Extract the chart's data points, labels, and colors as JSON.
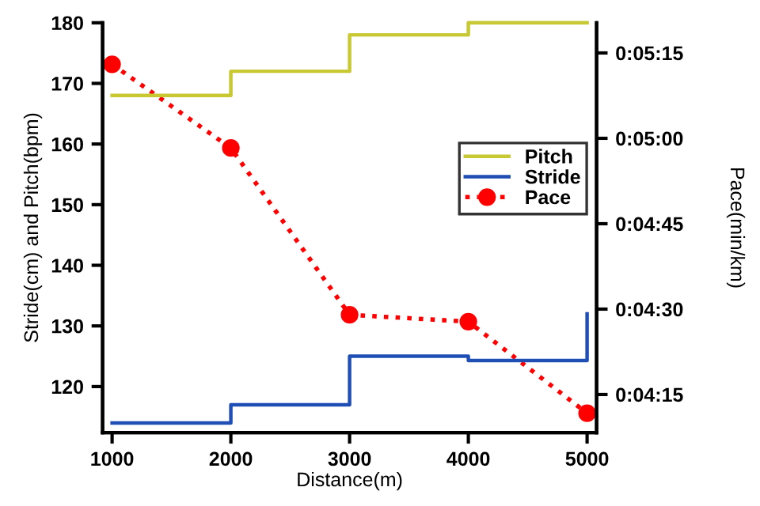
{
  "chart_data": {
    "type": "step",
    "xlabel": "Distance(m)",
    "ylabel": "Stride(cm) and Pitch(bpm)",
    "y2label": "Pace(min/km)",
    "x": [
      1000,
      2000,
      3000,
      4000,
      5000
    ],
    "series": [
      {
        "name": "Pitch",
        "color": "#c8c832",
        "values": [
          168,
          172,
          178,
          180,
          180
        ]
      },
      {
        "name": "Stride",
        "color": "#1f4fb4",
        "values": [
          114,
          117,
          125,
          124.3,
          132
        ]
      },
      {
        "name": "Pace",
        "color": "#ff0000",
        "type": "line",
        "axis": "y2",
        "marker": "circle",
        "line_style": "dotted",
        "values": [
          313,
          298.3,
          269,
          267.8,
          251.7
        ]
      }
    ],
    "xlim": [
      920,
      5080
    ],
    "xticks": [
      1000,
      2000,
      3000,
      4000,
      5000
    ],
    "ylim": [
      112.4,
      180
    ],
    "yticks": [
      120,
      130,
      140,
      150,
      160,
      170,
      180
    ],
    "y2lim": [
      248.3,
      320.3
    ],
    "y2ticks": [
      {
        "value": 255,
        "label": "0:04:15"
      },
      {
        "value": 270,
        "label": "0:04:30"
      },
      {
        "value": 285,
        "label": "0:04:45"
      },
      {
        "value": 300,
        "label": "0:05:00"
      },
      {
        "value": 315,
        "label": "0:05:15"
      }
    ],
    "grid": false,
    "legend": "center right"
  }
}
